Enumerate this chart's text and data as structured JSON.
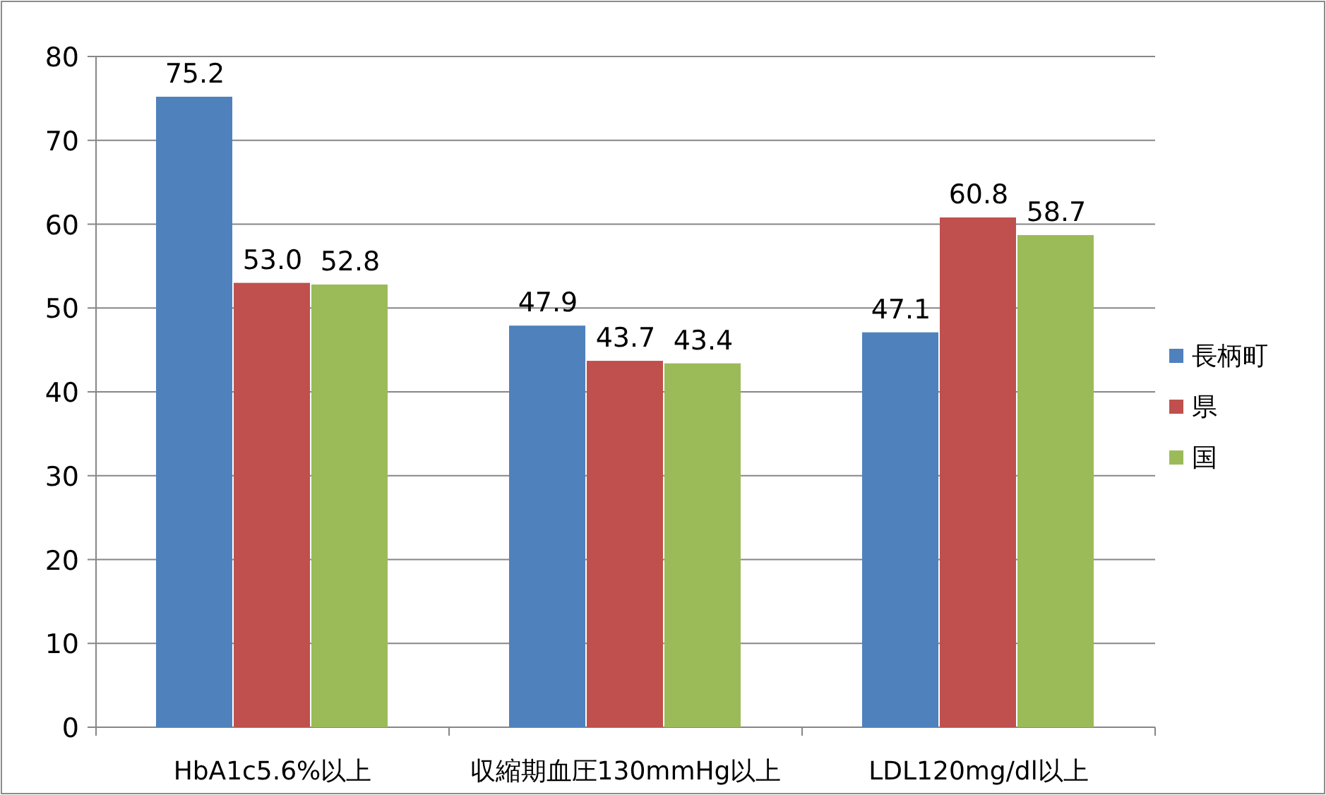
{
  "chart_data": {
    "type": "bar",
    "categories": [
      "HbA1c5.6%以上",
      "収縮期血圧130mmHg以上",
      "LDL120mg/dl以上"
    ],
    "series": [
      {
        "name": "長柄町",
        "color": "#4f81bd",
        "values": [
          75.2,
          47.9,
          47.1
        ],
        "value_labels": [
          "75.2",
          "47.9",
          "47.1"
        ]
      },
      {
        "name": "県",
        "color": "#c0504d",
        "values": [
          53.0,
          43.7,
          60.8
        ],
        "value_labels": [
          "53.0",
          "43.7",
          "60.8"
        ]
      },
      {
        "name": "国",
        "color": "#9bbb59",
        "values": [
          52.8,
          43.4,
          58.7
        ],
        "value_labels": [
          "52.8",
          "43.4",
          "58.7"
        ]
      }
    ],
    "ylim": [
      0,
      80
    ],
    "yticks": [
      0,
      10,
      20,
      30,
      40,
      50,
      60,
      70,
      80
    ],
    "grid": "y",
    "legend": "right"
  }
}
